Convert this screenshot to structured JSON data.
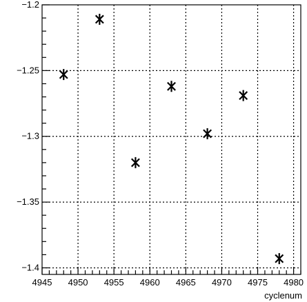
{
  "chart_data": {
    "type": "scatter",
    "title": "",
    "xlabel": "cyclenum",
    "ylabel": "",
    "xlim": [
      4945,
      4981
    ],
    "ylim": [
      -1.405,
      -1.2
    ],
    "x_ticks": [
      4945,
      4950,
      4955,
      4960,
      4965,
      4970,
      4975,
      4980
    ],
    "x_tick_labels": [
      "4945",
      "4950",
      "4955",
      "4960",
      "4965",
      "4970",
      "4975",
      "4980"
    ],
    "y_ticks": [
      -1.2,
      -1.25,
      -1.3,
      -1.35,
      -1.4
    ],
    "y_tick_labels": [
      "−1.2",
      "−1.25",
      "−1.3",
      "−1.35",
      "−1.4"
    ],
    "grid": true,
    "marker": "asterisk",
    "series": [
      {
        "x": [
          4948,
          4953,
          4958,
          4963,
          4968,
          4973,
          4978
        ],
        "y": [
          -1.253,
          -1.211,
          -1.32,
          -1.262,
          -1.298,
          -1.269,
          -1.393
        ]
      }
    ]
  }
}
